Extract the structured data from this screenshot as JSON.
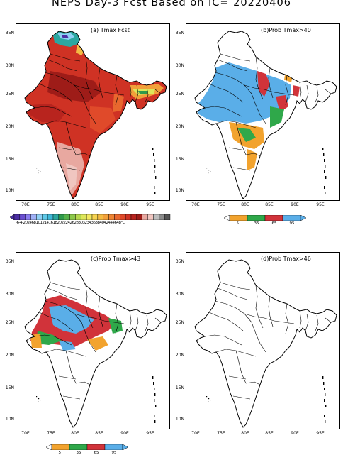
{
  "title": "NEPS Day-3 Fcst Based on IC= 20220406",
  "panels": [
    {
      "label": "(a) Tmax Fcst",
      "kind": "tmax"
    },
    {
      "label": "(b)Prob Tmax>40",
      "kind": "p40"
    },
    {
      "label": "(c)Prob Tmax>43",
      "kind": "p43"
    },
    {
      "label": "(d)Prob Tmax>46",
      "kind": "p46"
    }
  ],
  "axes": {
    "lat_ticks": [
      "35N",
      "30N",
      "25N",
      "20N",
      "15N",
      "10N"
    ],
    "lon_ticks": [
      "70E",
      "75E",
      "80E",
      "85E",
      "90E",
      "95E"
    ]
  },
  "tmax_colorbar": {
    "labels": [
      "-6",
      "-4",
      "-2",
      "0",
      "2",
      "4",
      "6",
      "8",
      "10",
      "12",
      "14",
      "16",
      "18",
      "20",
      "22",
      "24",
      "26",
      "28",
      "30",
      "32",
      "34",
      "36",
      "38",
      "40",
      "42",
      "44",
      "46",
      "48"
    ],
    "unit": "°C",
    "colors": [
      "#4b2ea3",
      "#6a4fd0",
      "#8a7df0",
      "#9fb0f5",
      "#8fd0f5",
      "#5ec9e8",
      "#3fb8d8",
      "#2ba7a0",
      "#2f9a4a",
      "#56b34a",
      "#8cc84a",
      "#b6d84e",
      "#dde65a",
      "#f2e860",
      "#f6d350",
      "#f4bb44",
      "#f2a03a",
      "#ee8433",
      "#e8672e",
      "#e04a2a",
      "#cf3224",
      "#b8241e",
      "#9e1c18",
      "#e8a8a0",
      "#f0c6c0",
      "#bdbdbd",
      "#8c8c8c",
      "#555555"
    ]
  },
  "prob_colorbar_b": {
    "labels": [
      "5",
      "35",
      "65",
      "95"
    ],
    "colors": [
      "#f2a32e",
      "#2fa84a",
      "#d1333a",
      "#5aaee8"
    ]
  },
  "prob_colorbar_c": {
    "labels": [
      "5",
      "35",
      "65",
      "95"
    ],
    "colors": [
      "#f2a32e",
      "#2fa84a",
      "#d1333a",
      "#5aaee8"
    ]
  }
}
